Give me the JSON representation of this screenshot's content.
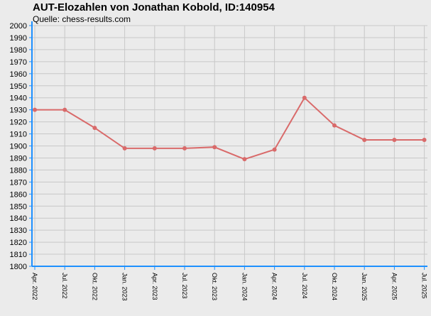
{
  "chart_data": {
    "type": "line",
    "title": "AUT-Elozahlen von Jonathan Kobold, ID:140954",
    "subtitle": "Quelle: chess-results.com",
    "xlabel": "",
    "ylabel": "",
    "ylim": [
      1800,
      2000
    ],
    "ytick_step": 10,
    "grid": true,
    "categories": [
      "Apr. 2022",
      "Jul. 2022",
      "Okt. 2022",
      "Jan. 2023",
      "Apr. 2023",
      "Jul. 2023",
      "Okt. 2023",
      "Jan. 2024",
      "Apr. 2024",
      "Jul. 2024",
      "Okt. 2024",
      "Jan. 2025",
      "Apr. 2025",
      "Jul. 2025"
    ],
    "series": [
      {
        "values": [
          1930,
          1930,
          1915,
          1898,
          1898,
          1898,
          1899,
          1889,
          1897,
          1940,
          1917,
          1905,
          1905,
          1905
        ]
      }
    ],
    "colors": {
      "line": "#d96a6a",
      "axis": "#1e90ff",
      "grid": "#c8c8c8",
      "background": "#ebebeb"
    }
  }
}
